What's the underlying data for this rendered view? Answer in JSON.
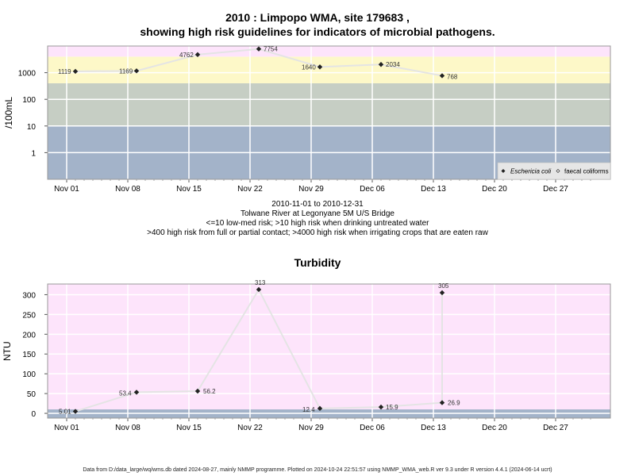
{
  "chart_data": [
    {
      "type": "line",
      "title": "2010 : Limpopo WMA, site 179683 ,",
      "subtitle": "showing high risk guidelines for indicators of microbial pathogens.",
      "ylabel": "/100mL",
      "y_scale": "log",
      "ylim": [
        0.1,
        10000
      ],
      "y_ticks": [
        {
          "v": 1,
          "label": "1"
        },
        {
          "v": 10,
          "label": "10"
        },
        {
          "v": 100,
          "label": "100"
        },
        {
          "v": 1000,
          "label": "1000"
        }
      ],
      "x_ticks": [
        "Nov 01",
        "Nov 08",
        "Nov 15",
        "Nov 22",
        "Nov 29",
        "Dec 06",
        "Dec 13",
        "Dec 20",
        "Dec 27"
      ],
      "bands": [
        {
          "from": 0.1,
          "to": 10,
          "color": "#a3b3c9"
        },
        {
          "from": 10,
          "to": 400,
          "color": "#c6cec4"
        },
        {
          "from": 400,
          "to": 4000,
          "color": "#fdf8c8"
        },
        {
          "from": 4000,
          "to": 10000,
          "color": "#fde4fb"
        }
      ],
      "series": [
        {
          "name": "Eschericia coli",
          "points": [
            {
              "x": "Nov 02",
              "y": 1119,
              "label": "1119"
            },
            {
              "x": "Nov 09",
              "y": 1169,
              "label": "1169"
            },
            {
              "x": "Nov 16",
              "y": 4762,
              "label": "4762"
            },
            {
              "x": "Nov 23",
              "y": 7754,
              "label": "7754"
            },
            {
              "x": "Nov 30",
              "y": 1640,
              "label": "1640"
            },
            {
              "x": "Dec 07",
              "y": 2034,
              "label": "2034"
            },
            {
              "x": "Dec 14",
              "y": 768,
              "label": "768"
            }
          ]
        }
      ],
      "legend": {
        "position": "bottom-right",
        "entries": [
          "Eschericia coli",
          "faecal coliforms"
        ]
      },
      "caption": [
        "2010-11-01 to 2010-12-31",
        "Tolwane River at Legonyane 5M U/S Bridge",
        "<=10 low-med risk; >10 high risk when drinking untreated water",
        ">400 high risk from full or partial contact; >4000 high risk when irrigating crops that are eaten raw"
      ]
    },
    {
      "type": "line",
      "title": "Turbidity",
      "ylabel": "NTU",
      "ylim": [
        -12,
        327
      ],
      "y_ticks": [
        0,
        50,
        100,
        150,
        200,
        250,
        300
      ],
      "x_ticks": [
        "Nov 01",
        "Nov 08",
        "Nov 15",
        "Nov 22",
        "Nov 29",
        "Dec 06",
        "Dec 13",
        "Dec 20",
        "Dec 27"
      ],
      "bands": [
        {
          "from": -12,
          "to": 10,
          "color": "#a3b3c9"
        },
        {
          "from": 10,
          "to": 327,
          "color": "#fde4fb"
        }
      ],
      "series": [
        {
          "name": "Turbidity",
          "points": [
            {
              "x": "Nov 02",
              "y": 5.01,
              "label": "5.01"
            },
            {
              "x": "Nov 09",
              "y": 53.4,
              "label": "53.4"
            },
            {
              "x": "Nov 16",
              "y": 56.2,
              "label": "56.2"
            },
            {
              "x": "Nov 23",
              "y": 313,
              "label": "313"
            },
            {
              "x": "Nov 30",
              "y": 12.4,
              "label": "12.4"
            },
            {
              "x": "Dec 07",
              "y": 15.9,
              "label": "15.9"
            },
            {
              "x": "Dec 14",
              "y": 26.9,
              "label": "26.9"
            },
            {
              "x": "Dec 14",
              "y": 305,
              "label": "305"
            }
          ]
        }
      ]
    }
  ],
  "footer": "Data from D:/data_large/wq/wms.db dated 2024-08-27, mainly NMMP programme. Plotted on 2024-10-24 22:51:57 using NMMP_WMA_web.R ver 9.3 under R version 4.4.1 (2024-06-14 ucrt)",
  "colors": {
    "grid": "#ffffff",
    "line": "#e4e4e4",
    "frame": "#999999",
    "point": "#222222"
  }
}
